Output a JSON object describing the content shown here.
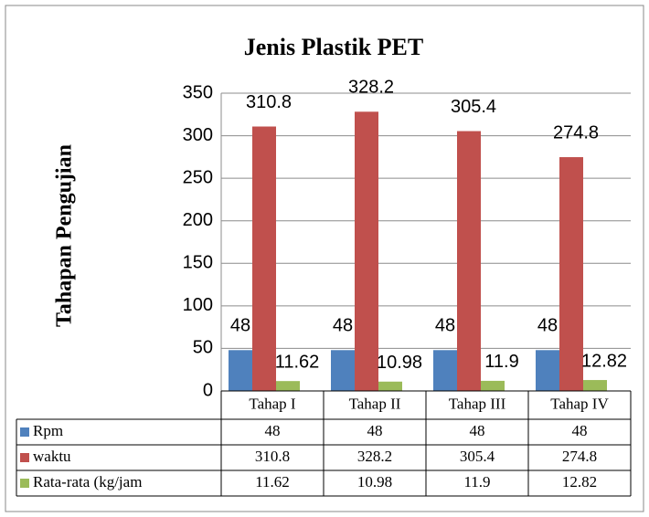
{
  "chart_data": {
    "type": "bar",
    "title": "Jenis Plastik PET",
    "y_label": "Tahapan Pengujian",
    "categories": [
      "Tahap I",
      "Tahap II",
      "Tahap III",
      "Tahap IV"
    ],
    "series": [
      {
        "name": "Rpm",
        "color": "#4f81bd",
        "values": [
          48,
          48,
          48,
          48
        ]
      },
      {
        "name": "waktu",
        "color": "#c0504d",
        "values": [
          310.8,
          328.2,
          305.4,
          274.8
        ]
      },
      {
        "name": "Rata-rata (kg/jam",
        "color": "#9bbb59",
        "values": [
          11.62,
          10.98,
          11.9,
          12.82
        ]
      }
    ],
    "ylim": [
      0,
      350
    ],
    "yticks": [
      0,
      50,
      100,
      150,
      200,
      250,
      300,
      350
    ],
    "grid": true,
    "data_table": true
  }
}
